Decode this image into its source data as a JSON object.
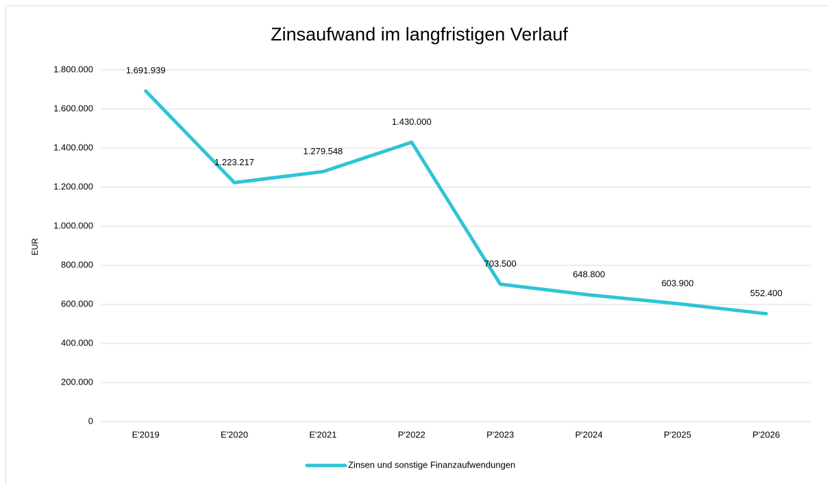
{
  "chart_data": {
    "type": "line",
    "title": "Zinsaufwand im langfristigen Verlauf",
    "y_label": "EUR",
    "categories": [
      "E'2019",
      "E'2020",
      "E'2021",
      "P'2022",
      "P'2023",
      "P'2024",
      "P'2025",
      "P'2026"
    ],
    "series": [
      {
        "name": "Zinsen und sonstige Finanzaufwendungen",
        "color": "#2ec4d6",
        "values": [
          1691939,
          1223217,
          1279548,
          1430000,
          703500,
          648800,
          603900,
          552400
        ],
        "value_labels": [
          "1.691.939",
          "1.223.217",
          "1.279.548",
          "1.430.000",
          "703.500",
          "648.800",
          "603.900",
          "552.400"
        ]
      }
    ],
    "ylim": [
      0,
      1800000
    ],
    "yticks": [
      0,
      {
        "value": 200000,
        "label": "200.000"
      },
      {
        "value": 400000,
        "label": "400.000"
      },
      {
        "value": 600000,
        "label": "600.000"
      },
      {
        "value": 800000,
        "label": "800.000"
      },
      {
        "value": 1000000,
        "label": "1.000.000"
      },
      {
        "value": 1200000,
        "label": "1.200.000"
      },
      {
        "value": 1400000,
        "label": "1.400.000"
      },
      {
        "value": 1600000,
        "label": "1.600.000"
      },
      {
        "value": 1800000,
        "label": "1.800.000"
      }
    ],
    "grid": true,
    "legend": "bottom"
  }
}
